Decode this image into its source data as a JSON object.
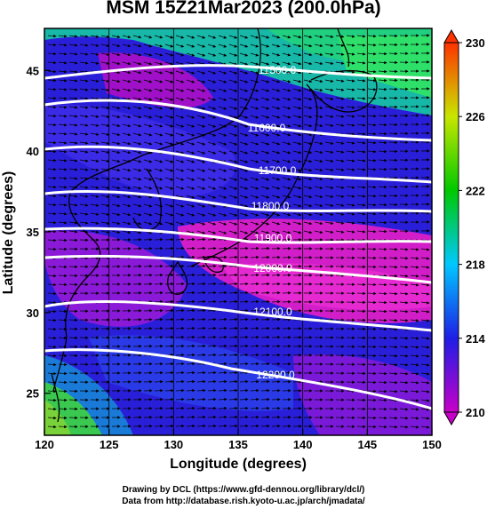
{
  "title": "MSM 15Z21Mar2023 (200.0hPa)",
  "x_axis": {
    "label": "Longitude (degrees)",
    "ticks": [
      "120",
      "125",
      "130",
      "135",
      "140",
      "145",
      "150"
    ],
    "range": [
      120,
      150
    ]
  },
  "y_axis": {
    "label": "Latitude  (degrees)",
    "ticks": [
      "25",
      "30",
      "35",
      "40",
      "45"
    ],
    "range": [
      22.4,
      47.6
    ]
  },
  "colorbar": {
    "ticks": [
      "210",
      "214",
      "218",
      "222",
      "226",
      "230"
    ],
    "range": [
      210,
      230
    ],
    "colors": [
      "#c800c8",
      "#1e1ee6",
      "#00c8ff",
      "#00c800",
      "#c8e600",
      "#ff3200"
    ]
  },
  "contours": [
    {
      "label": "11500.0"
    },
    {
      "label": "11600.0"
    },
    {
      "label": "11700.0"
    },
    {
      "label": "11800.0"
    },
    {
      "label": "11900.0"
    },
    {
      "label": "12000.0"
    },
    {
      "label": "12100.0"
    },
    {
      "label": "12200.0"
    }
  ],
  "credit": {
    "line1": "Drawing by DCL (https://www.gfd-dennou.org/library/dcl/)",
    "line2": "Data from http://database.rish.kyoto-u.ac.jp/arch/jmadata/"
  }
}
